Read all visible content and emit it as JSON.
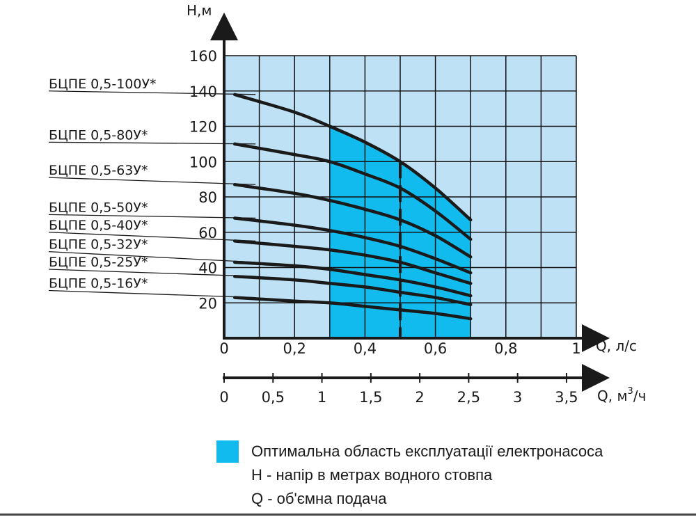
{
  "chart_data": {
    "type": "line",
    "ylabel": "H,м",
    "xlabel": "Q, л/с",
    "x2label": "Q, м",
    "x2label_sup": "3",
    "x2label_suffix": "/ч",
    "xlim": [
      0,
      1
    ],
    "ylim": [
      0,
      160
    ],
    "x_ticks": [
      "0",
      "0,2",
      "0,4",
      "0,6",
      "0,8",
      "1"
    ],
    "x2_ticks": [
      "0",
      "0,5",
      "1",
      "1,5",
      "2",
      "2,5",
      "3",
      "3,5"
    ],
    "y_ticks": [
      "20",
      "40",
      "60",
      "80",
      "100",
      "120",
      "140",
      "160"
    ],
    "optimal_range": [
      0.3,
      0.7
    ],
    "nominal_q": 0.5,
    "grid": true,
    "colors": {
      "background": "#bfe1f5",
      "optimal": "#12bbed",
      "grid": "#000000",
      "curve": "#1a1a1a"
    },
    "series": [
      {
        "name": "БЦПЕ 0,5-100У*",
        "label_y": 140,
        "x": [
          0.03,
          0.2,
          0.3,
          0.4,
          0.5,
          0.6,
          0.7
        ],
        "y": [
          138,
          128,
          120,
          111,
          100,
          85,
          67
        ]
      },
      {
        "name": "БЦПЕ 0,5-80У*",
        "label_y": 111,
        "x": [
          0.03,
          0.2,
          0.3,
          0.4,
          0.5,
          0.6,
          0.7
        ],
        "y": [
          110,
          104,
          100,
          93,
          85,
          72,
          56
        ]
      },
      {
        "name": "БЦПЕ 0,5-63У*",
        "label_y": 91,
        "x": [
          0.03,
          0.2,
          0.3,
          0.4,
          0.5,
          0.6,
          0.7
        ],
        "y": [
          87,
          82,
          78,
          73,
          67,
          58,
          46
        ]
      },
      {
        "name": "БЦПЕ 0,5-50У*",
        "label_y": 70,
        "x": [
          0.03,
          0.2,
          0.3,
          0.4,
          0.5,
          0.6,
          0.7
        ],
        "y": [
          68,
          64,
          61,
          57,
          52,
          45,
          37
        ]
      },
      {
        "name": "БЦПЕ 0,5-40У*",
        "label_y": 60,
        "x": [
          0.03,
          0.2,
          0.3,
          0.4,
          0.5,
          0.6,
          0.7
        ],
        "y": [
          55,
          52,
          50,
          47,
          43,
          37,
          31
        ]
      },
      {
        "name": "БЦПЕ 0,5-32У*",
        "label_y": 49,
        "x": [
          0.03,
          0.2,
          0.3,
          0.4,
          0.5,
          0.6,
          0.7
        ],
        "y": [
          43,
          41,
          39,
          36,
          33,
          29,
          24
        ]
      },
      {
        "name": "БЦПЕ 0,5-25У*",
        "label_y": 39,
        "x": [
          0.03,
          0.2,
          0.3,
          0.4,
          0.5,
          0.6,
          0.7
        ],
        "y": [
          35,
          33,
          31,
          29,
          26,
          23,
          19
        ]
      },
      {
        "name": "БЦПЕ 0,5-16У*",
        "label_y": 27,
        "x": [
          0.03,
          0.2,
          0.3,
          0.4,
          0.5,
          0.6,
          0.7
        ],
        "y": [
          23,
          21,
          20,
          18,
          16,
          14,
          11
        ]
      }
    ]
  },
  "legend": {
    "optimal_label": "Оптимальна область експлуатації електронасоса",
    "h_label": "Н - напір в метрах водного стовпа",
    "q_label": "Q - об'ємна подача"
  }
}
